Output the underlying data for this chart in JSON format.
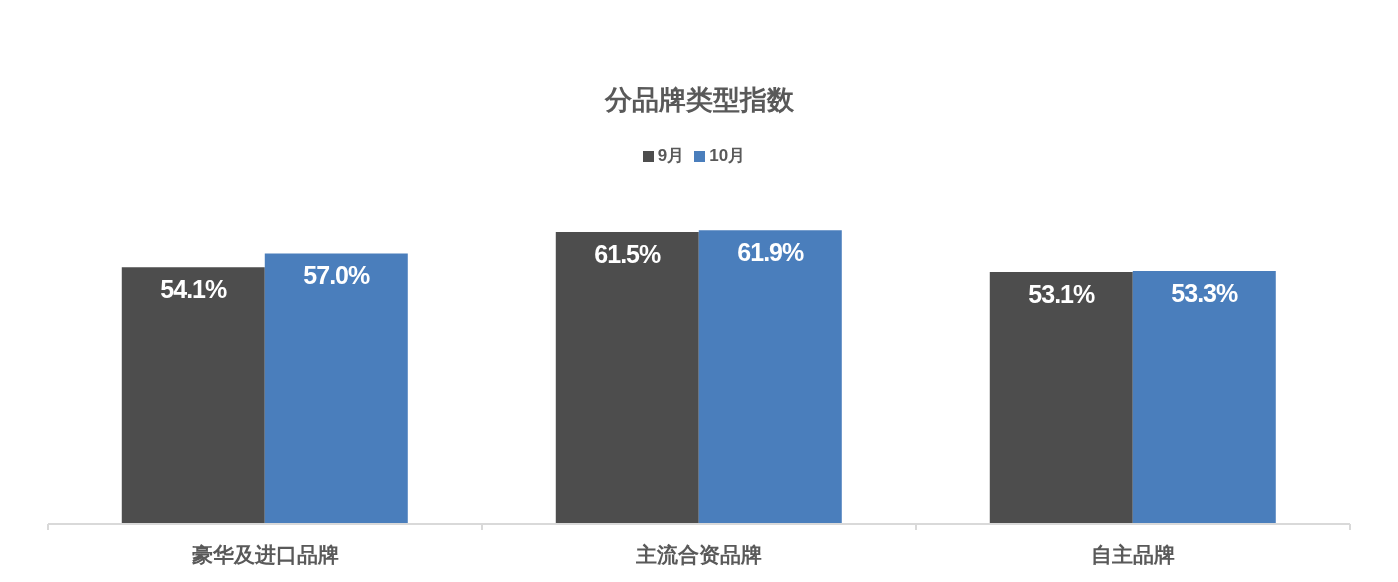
{
  "chart_data": {
    "type": "bar",
    "title": "分品牌类型指数",
    "categories": [
      "豪华及进口品牌",
      "主流合资品牌",
      "自主品牌"
    ],
    "series": [
      {
        "name": "9月",
        "color": "#4d4d4d",
        "values": [
          54.1,
          61.5,
          53.1
        ],
        "value_labels": [
          "54.1%",
          "61.5%",
          "53.1%"
        ]
      },
      {
        "name": "10月",
        "color": "#4a7ebc",
        "values": [
          57.0,
          61.9,
          53.3
        ],
        "value_labels": [
          "57.0%",
          "61.9%",
          "53.3%"
        ]
      }
    ],
    "legend": "top",
    "tick_labels": "x"
  }
}
